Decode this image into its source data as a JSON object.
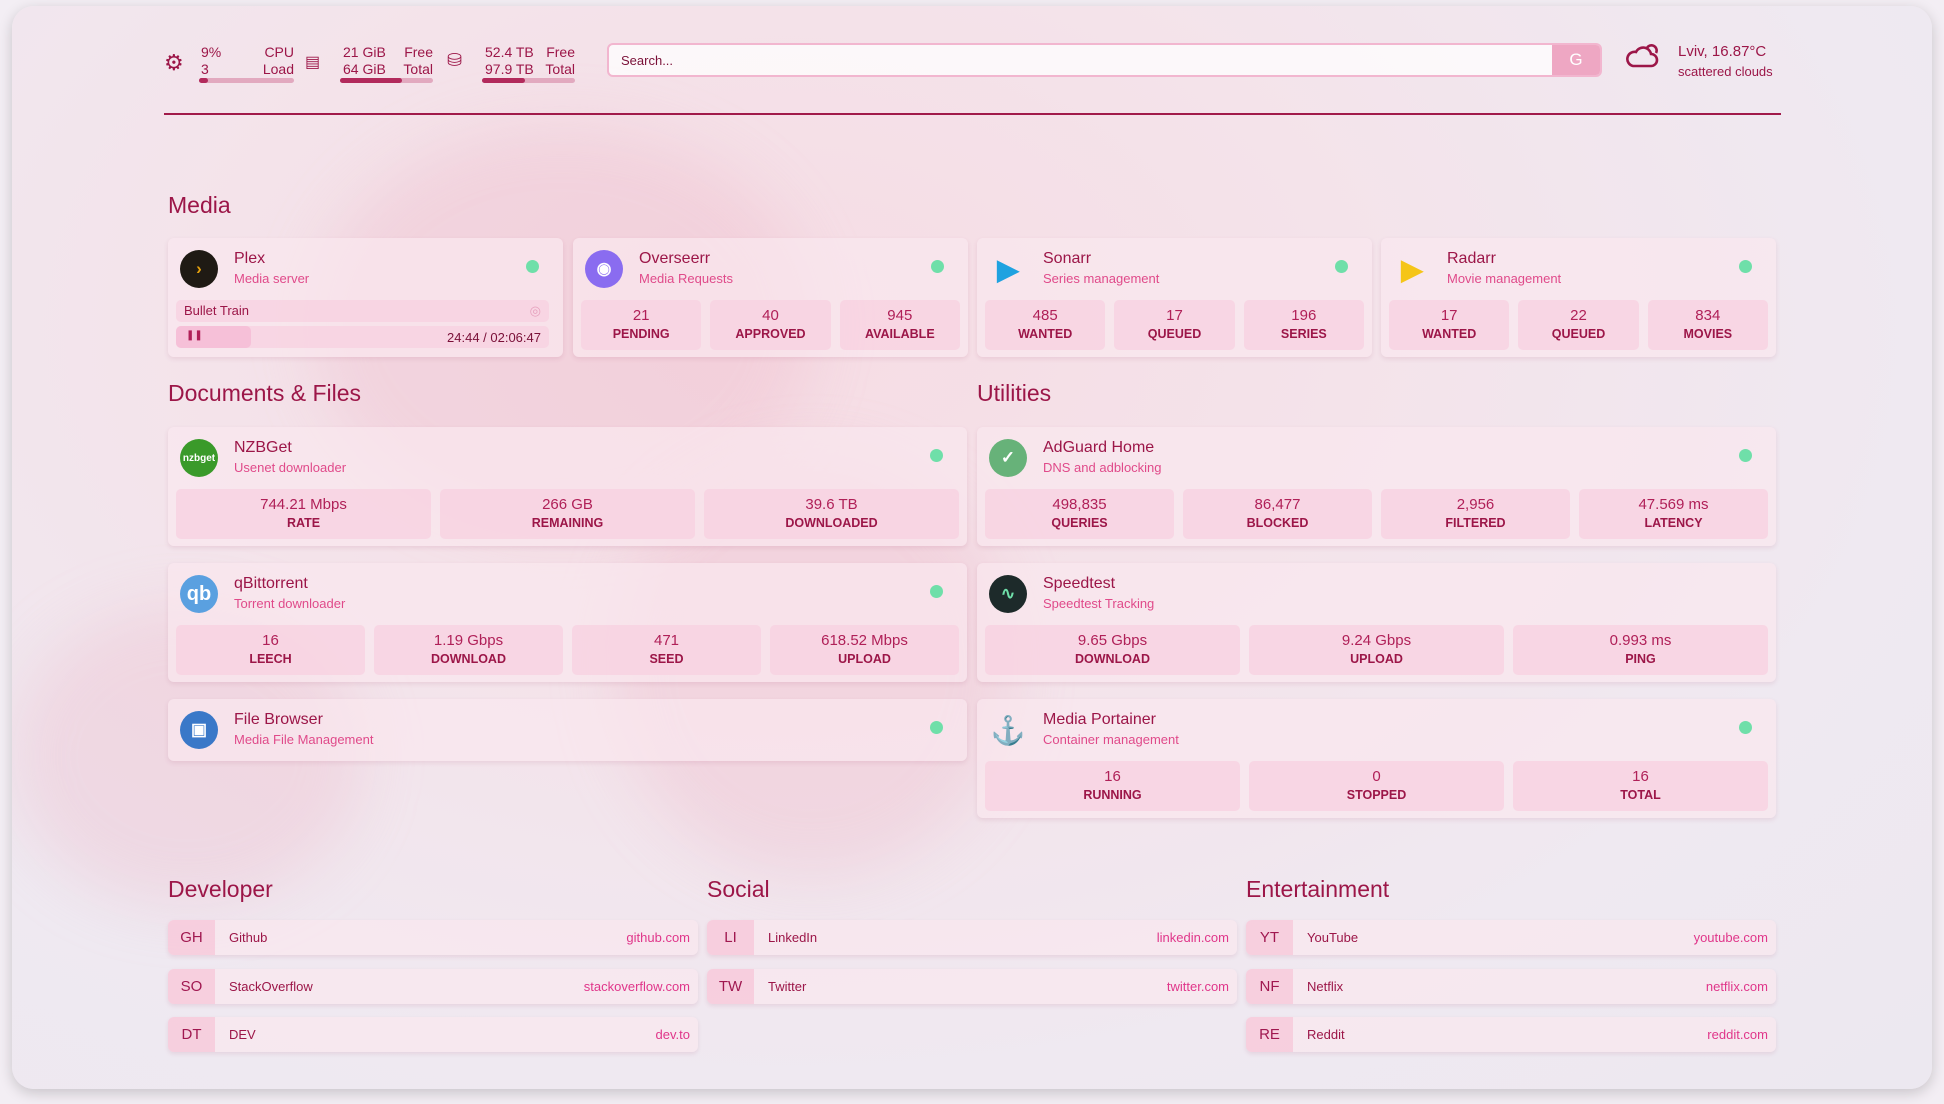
{
  "colors": {
    "accent": "#9c1648",
    "subtitle": "#e04a8a",
    "status_online": "#6fdfa9",
    "background": "#f3eef4"
  },
  "system": {
    "cpu": {
      "icon": "cpu-icon",
      "value": "9%",
      "sub": "3",
      "label": "CPU",
      "sublabel": "Load",
      "percent": 9
    },
    "memory": {
      "icon": "memory-icon",
      "value": "21 GiB",
      "sub": "64 GiB",
      "label": "Free",
      "sublabel": "Total",
      "percent": 67
    },
    "disk": {
      "icon": "disk-icon",
      "value": "52.4 TB",
      "sub": "97.9 TB",
      "label": "Free",
      "sublabel": "Total",
      "percent": 46
    }
  },
  "search": {
    "placeholder": "Search...",
    "engine_button": "G"
  },
  "weather": {
    "icon": "cloud-sun-icon",
    "location_temp": "Lviv, 16.87°C",
    "condition": "scattered clouds"
  },
  "sections": {
    "media": "Media",
    "documents": "Documents & Files",
    "utilities": "Utilities",
    "developer": "Developer",
    "social": "Social",
    "entertainment": "Entertainment"
  },
  "media": {
    "cards": [
      {
        "name": "Plex",
        "description": "Media server",
        "icon": "plex-icon",
        "status": "online",
        "now_playing": {
          "title": "Bullet Train",
          "time": "24:44 / 02:06:47",
          "progress": 20
        }
      },
      {
        "name": "Overseerr",
        "description": "Media Requests",
        "icon": "overseerr-icon",
        "status": "online",
        "stats": [
          {
            "value": "21",
            "label": "PENDING"
          },
          {
            "value": "40",
            "label": "APPROVED"
          },
          {
            "value": "945",
            "label": "AVAILABLE"
          }
        ]
      },
      {
        "name": "Sonarr",
        "description": "Series management",
        "icon": "sonarr-icon",
        "status": "online",
        "stats": [
          {
            "value": "485",
            "label": "WANTED"
          },
          {
            "value": "17",
            "label": "QUEUED"
          },
          {
            "value": "196",
            "label": "SERIES"
          }
        ]
      },
      {
        "name": "Radarr",
        "description": "Movie management",
        "icon": "radarr-icon",
        "status": "online",
        "stats": [
          {
            "value": "17",
            "label": "WANTED"
          },
          {
            "value": "22",
            "label": "QUEUED"
          },
          {
            "value": "834",
            "label": "MOVIES"
          }
        ]
      }
    ]
  },
  "documents": {
    "cards": [
      {
        "name": "NZBGet",
        "description": "Usenet downloader",
        "icon": "nzbget-icon",
        "icon_text": "nzbget",
        "status": "online",
        "stats": [
          {
            "value": "744.21 Mbps",
            "label": "RATE"
          },
          {
            "value": "266 GB",
            "label": "REMAINING"
          },
          {
            "value": "39.6 TB",
            "label": "DOWNLOADED"
          }
        ]
      },
      {
        "name": "qBittorrent",
        "description": "Torrent downloader",
        "icon": "qbittorrent-icon",
        "icon_text": "qb",
        "status": "online",
        "stats": [
          {
            "value": "16",
            "label": "LEECH"
          },
          {
            "value": "1.19 Gbps",
            "label": "DOWNLOAD"
          },
          {
            "value": "471",
            "label": "SEED"
          },
          {
            "value": "618.52 Mbps",
            "label": "UPLOAD"
          }
        ]
      },
      {
        "name": "File Browser",
        "description": "Media File Management",
        "icon": "file-browser-icon",
        "status": "online"
      }
    ]
  },
  "utilities": {
    "cards": [
      {
        "name": "AdGuard Home",
        "description": "DNS and adblocking",
        "icon": "adguard-icon",
        "status": "online",
        "stats": [
          {
            "value": "498,835",
            "label": "QUERIES"
          },
          {
            "value": "86,477",
            "label": "BLOCKED"
          },
          {
            "value": "2,956",
            "label": "FILTERED"
          },
          {
            "value": "47.569 ms",
            "label": "LATENCY"
          }
        ]
      },
      {
        "name": "Speedtest",
        "description": "Speedtest Tracking",
        "icon": "speedtest-icon",
        "stats": [
          {
            "value": "9.65 Gbps",
            "label": "DOWNLOAD"
          },
          {
            "value": "9.24 Gbps",
            "label": "UPLOAD"
          },
          {
            "value": "0.993 ms",
            "label": "PING"
          }
        ]
      },
      {
        "name": "Media Portainer",
        "description": "Container management",
        "icon": "portainer-icon",
        "status": "online",
        "stats": [
          {
            "value": "16",
            "label": "RUNNING"
          },
          {
            "value": "0",
            "label": "STOPPED"
          },
          {
            "value": "16",
            "label": "TOTAL"
          }
        ]
      }
    ]
  },
  "bookmarks": {
    "developer": [
      {
        "abbr": "GH",
        "name": "Github",
        "url": "github.com"
      },
      {
        "abbr": "SO",
        "name": "StackOverflow",
        "url": "stackoverflow.com"
      },
      {
        "abbr": "DT",
        "name": "DEV",
        "url": "dev.to"
      }
    ],
    "social": [
      {
        "abbr": "LI",
        "name": "LinkedIn",
        "url": "linkedin.com"
      },
      {
        "abbr": "TW",
        "name": "Twitter",
        "url": "twitter.com"
      }
    ],
    "entertainment": [
      {
        "abbr": "YT",
        "name": "YouTube",
        "url": "youtube.com"
      },
      {
        "abbr": "NF",
        "name": "Netflix",
        "url": "netflix.com"
      },
      {
        "abbr": "RE",
        "name": "Reddit",
        "url": "reddit.com"
      }
    ]
  }
}
